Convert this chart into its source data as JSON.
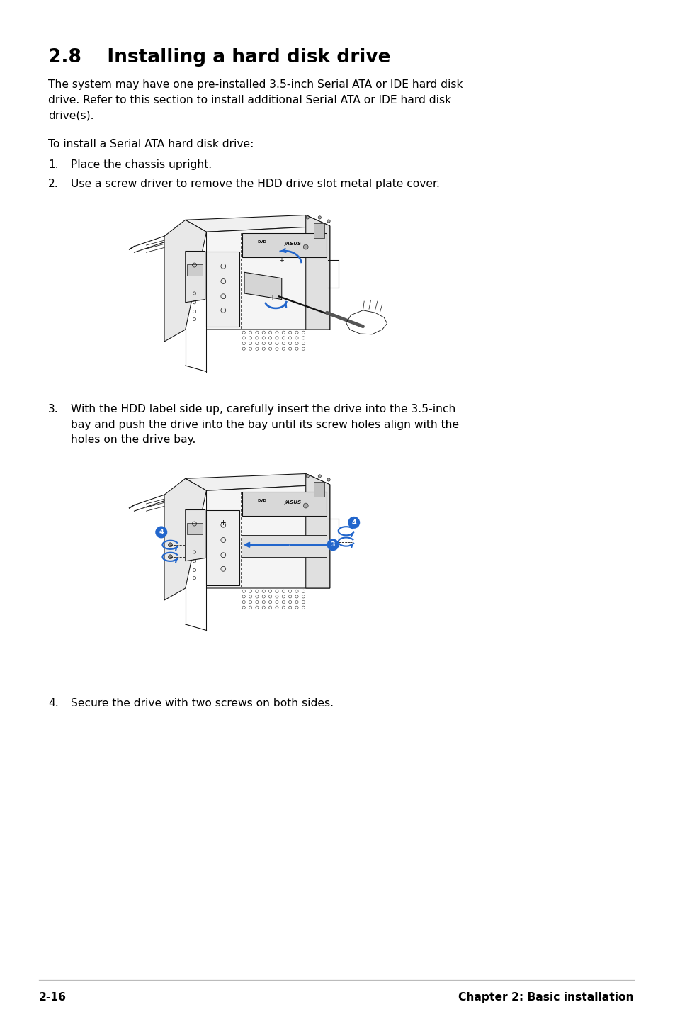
{
  "title": "2.8    Installing a hard disk drive",
  "body_text_1": "The system may have one pre-installed 3.5-inch Serial ATA or IDE hard disk\ndrive. Refer to this section to install additional Serial ATA or IDE hard disk\ndrive(s).",
  "body_text_2": "To install a Serial ATA hard disk drive:",
  "step1": "Place the chassis upright.",
  "step2": "Use a screw driver to remove the HDD drive slot metal plate cover.",
  "step3": "With the HDD label side up, carefully insert the drive into the 3.5-inch\nbay and push the drive into the bay until its screw holes align with the\nholes on the drive bay.",
  "step4": "Secure the drive with two screws on both sides.",
  "footer_left": "2-16",
  "footer_right": "Chapter 2: Basic installation",
  "bg_color": "#ffffff",
  "text_color": "#000000",
  "title_fontsize": 19,
  "body_fontsize": 11.2,
  "step_fontsize": 11.2,
  "footer_fontsize": 11.2,
  "blue_color": "#2266cc",
  "line_color": "#111111"
}
